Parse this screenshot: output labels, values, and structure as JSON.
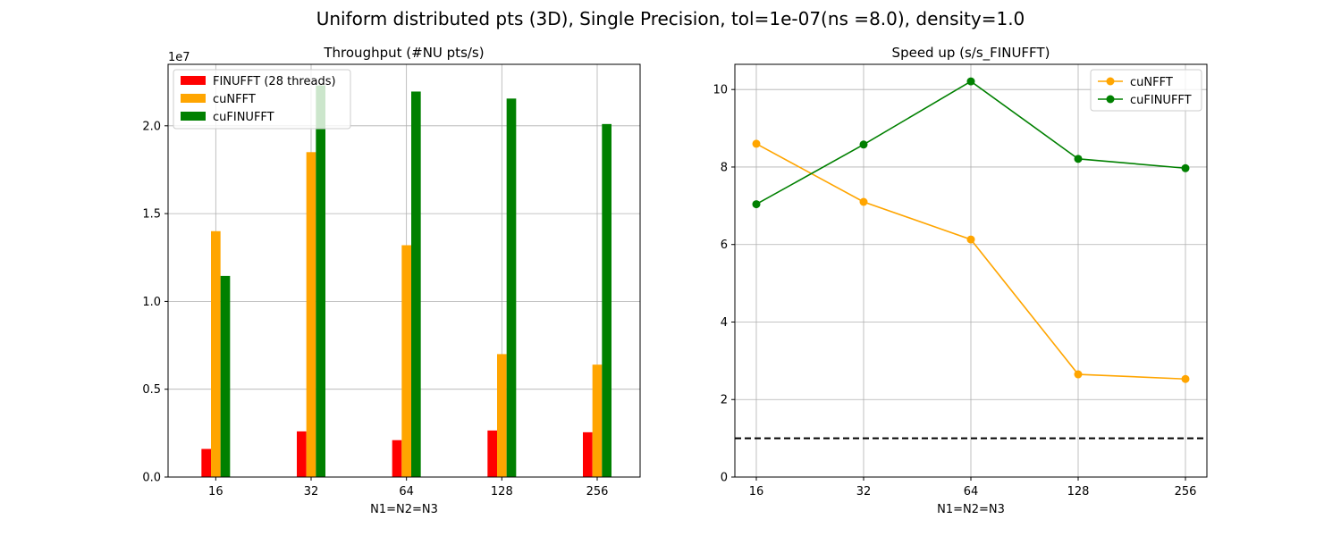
{
  "suptitle": "Uniform distributed pts (3D), Single Precision, tol=1e-07(ns =8.0), density=1.0",
  "chart_data": [
    {
      "type": "bar",
      "title": "Throughput (#NU pts/s)",
      "xlabel": "N1=N2=N3",
      "ylabel": "",
      "categories": [
        "16",
        "32",
        "64",
        "128",
        "256"
      ],
      "ylim": [
        0,
        23500000
      ],
      "yticks": [
        0,
        5000000,
        10000000,
        15000000,
        20000000
      ],
      "ytick_labels": [
        "0.0",
        "0.5",
        "1.0",
        "1.5",
        "2.0"
      ],
      "y_offset_label": "1e7",
      "grid": true,
      "legend": "upper-left",
      "series": [
        {
          "name": "FINUFFT (28 threads)",
          "color": "#ff0000",
          "values": [
            1600000,
            2600000,
            2100000,
            2650000,
            2550000
          ]
        },
        {
          "name": "cuNFFT",
          "color": "#ffa500",
          "values": [
            14000000,
            18500000,
            13200000,
            7000000,
            6400000
          ]
        },
        {
          "name": "cuFINUFFT",
          "color": "#008000",
          "values": [
            11450000,
            22300000,
            21950000,
            21550000,
            20100000
          ]
        }
      ]
    },
    {
      "type": "line",
      "title": "Speed up (s/s_FINUFFT)",
      "xlabel": "N1=N2=N3",
      "ylabel": "",
      "categories": [
        "16",
        "32",
        "64",
        "128",
        "256"
      ],
      "ylim": [
        0,
        10.65
      ],
      "yticks": [
        0,
        2,
        4,
        6,
        8,
        10
      ],
      "ytick_labels": [
        "0",
        "2",
        "4",
        "6",
        "8",
        "10"
      ],
      "grid": true,
      "legend": "upper-right",
      "reference_line": {
        "y": 1.0,
        "style": "dashed",
        "color": "#000000"
      },
      "series": [
        {
          "name": "cuNFFT",
          "color": "#ffa500",
          "values": [
            8.6,
            7.1,
            6.13,
            2.65,
            2.53
          ]
        },
        {
          "name": "cuFINUFFT",
          "color": "#008000",
          "values": [
            7.04,
            8.58,
            10.21,
            8.21,
            7.97
          ]
        }
      ]
    }
  ]
}
